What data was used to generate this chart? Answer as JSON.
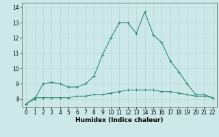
{
  "xlabel": "Humidex (Indice chaleur)",
  "x_values": [
    0,
    1,
    2,
    3,
    4,
    5,
    6,
    7,
    8,
    9,
    10,
    11,
    12,
    13,
    14,
    15,
    16,
    17,
    18,
    19,
    20,
    21,
    22
  ],
  "line1_y": [
    7.7,
    8.0,
    9.0,
    9.1,
    9.0,
    8.8,
    8.8,
    9.0,
    9.5,
    10.9,
    12.0,
    13.0,
    13.0,
    12.3,
    13.7,
    12.2,
    11.7,
    10.5,
    9.8,
    9.0,
    8.3,
    8.3,
    8.1
  ],
  "line2_y": [
    7.7,
    8.1,
    8.1,
    8.1,
    8.1,
    8.1,
    8.2,
    8.2,
    8.3,
    8.3,
    8.4,
    8.5,
    8.6,
    8.6,
    8.6,
    8.6,
    8.5,
    8.5,
    8.4,
    8.3,
    8.2,
    8.2,
    8.1
  ],
  "line_color": "#2e8b72",
  "bg_color": "#cce8e8",
  "grid_color": "#b8d4d4",
  "ylim": [
    7.5,
    14.3
  ],
  "yticks": [
    8,
    9,
    10,
    11,
    12,
    13,
    14
  ],
  "xticks": [
    0,
    1,
    2,
    3,
    4,
    5,
    6,
    7,
    8,
    9,
    10,
    11,
    12,
    13,
    14,
    15,
    16,
    17,
    18,
    19,
    20,
    21,
    22
  ],
  "xlabel_fontsize": 6.5,
  "xlabel_fontweight": "bold",
  "tick_labelsize": 5.5
}
